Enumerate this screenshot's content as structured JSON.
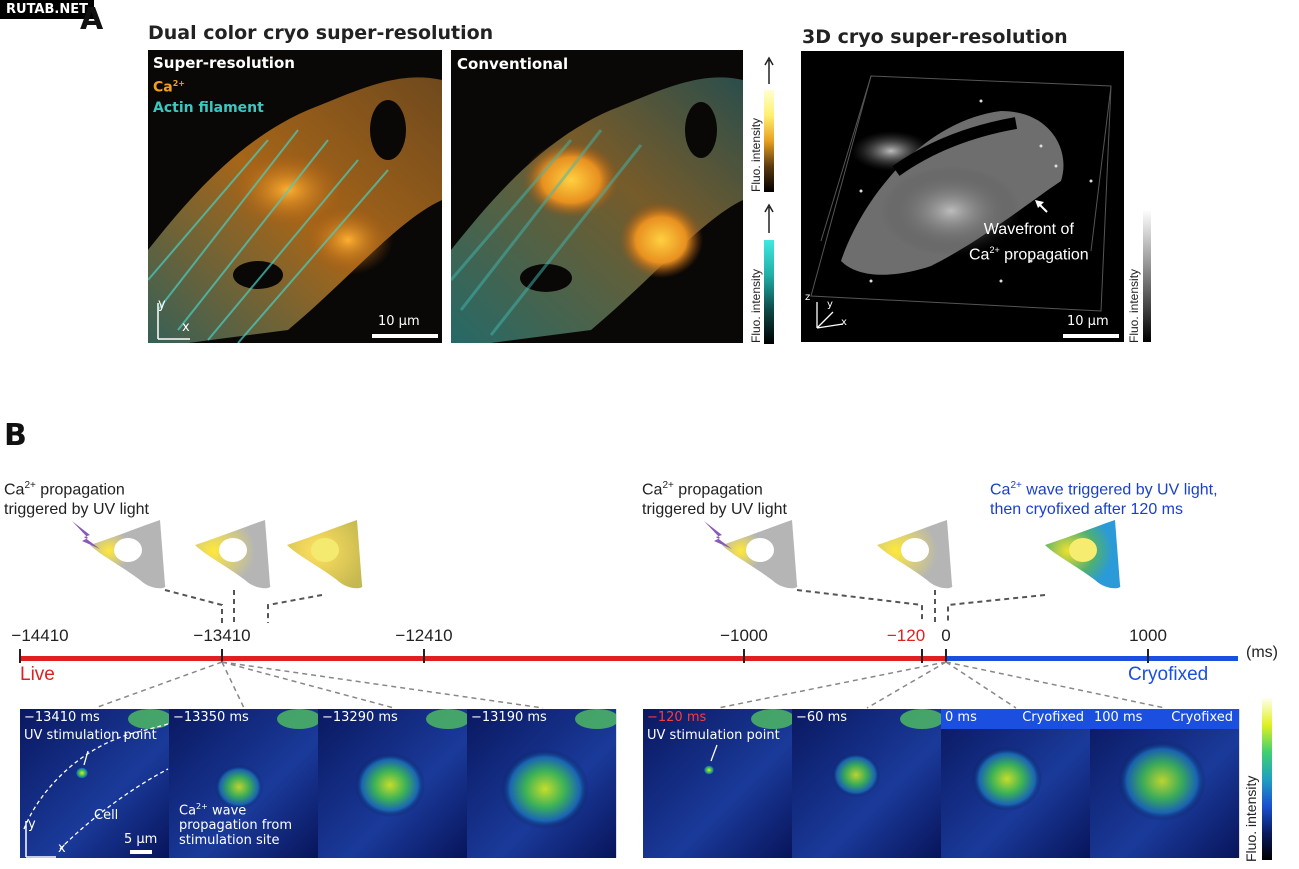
{
  "watermark": "RUTAB.NET",
  "panel_a": {
    "letter": "A",
    "dual_title": "Dual color cryo super-resolution",
    "super_res_label": "Super-resolution",
    "ca_label": "Ca",
    "ca_sup": "2+",
    "actin_label": "Actin filament",
    "conventional_label": "Conventional",
    "scale_label": "10 µm",
    "cbar_label": "Fluo. intensity",
    "axis_x": "x",
    "axis_y": "y",
    "axis_z": "z",
    "three_d_title": "3D cryo super-resolution",
    "wavefront_line1": "Wavefront of",
    "wavefront_line2a": "Ca",
    "wavefront_sup": "2+",
    "wavefront_line2b": " propagation",
    "scale_label_3d": "10 µm",
    "colors": {
      "calcium": "#f0a020",
      "actin": "#3ac8c0"
    }
  },
  "panel_b": {
    "letter": "B",
    "caption_left_1a": "Ca",
    "caption_left_sup": "2+",
    "caption_left_1b": " propagation",
    "caption_left_2": "triggered by UV light",
    "caption_mid_1a": "Ca",
    "caption_mid_sup": "2+",
    "caption_mid_1b": " propagation",
    "caption_mid_2": "triggered by UV light",
    "caption_right_1a": "Ca",
    "caption_right_sup": "2+",
    "caption_right_1b": " wave triggered by UV light,",
    "caption_right_2": "then cryofixed after 120 ms",
    "ticks": [
      "−14410",
      "−13410",
      "−12410",
      "−1000",
      "−120",
      "0",
      "1000"
    ],
    "unit": "(ms)",
    "live_label": "Live",
    "cryo_label": "Cryofixed",
    "frames_left": [
      "−13410 ms",
      "−13350 ms",
      "−13290 ms",
      "−13190 ms"
    ],
    "frames_right": [
      "−120 ms",
      "−60 ms",
      "0 ms",
      "100 ms"
    ],
    "cryofixed_tag": "Cryofixed",
    "uv_point": "UV stimulation point",
    "cell_label": "Cell",
    "scale_5um": "5 µm",
    "wave_note_1a": "Ca",
    "wave_note_sup": "2+",
    "wave_note_1b": " wave",
    "wave_note_2": "propagation from",
    "wave_note_3": "stimulation site",
    "cbar_label": "Fluo. intensity",
    "colors": {
      "live": "#e02020",
      "cryo": "#1a4fe0",
      "caption_blue": "#1a3fcc"
    }
  }
}
